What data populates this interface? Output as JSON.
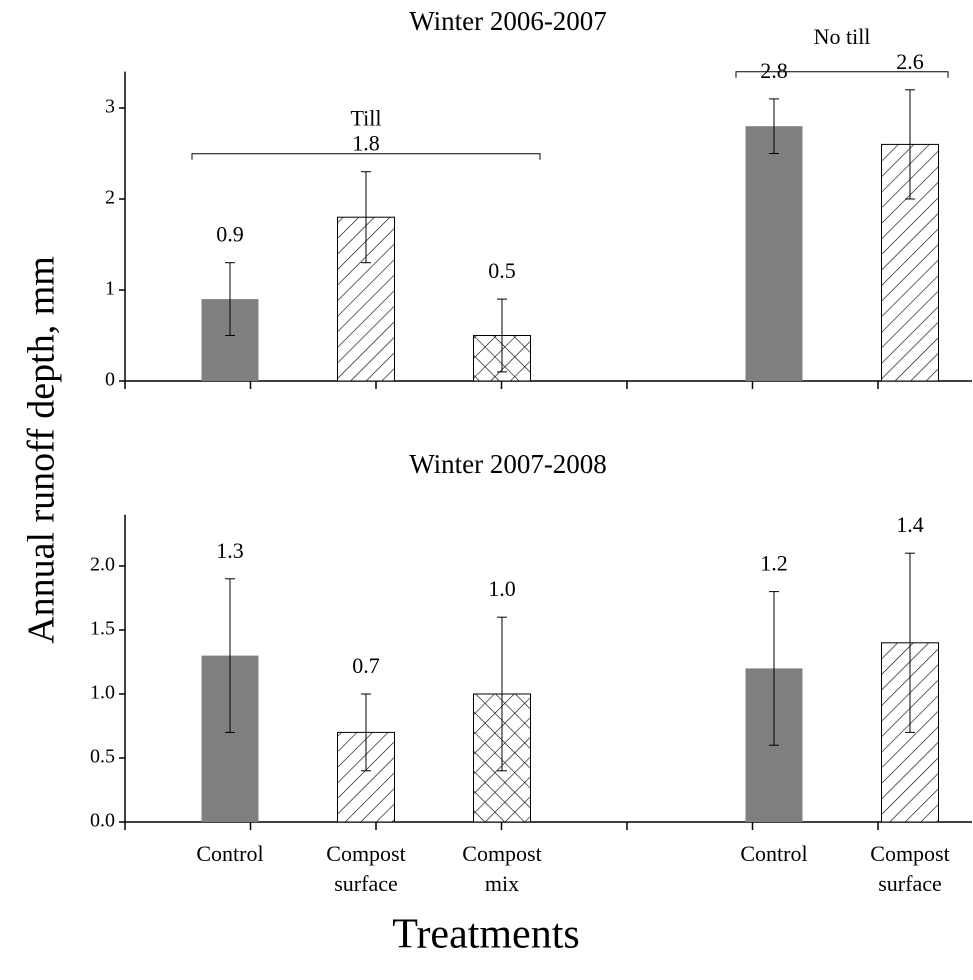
{
  "axis_label_y": "Annual runoff depth, mm",
  "axis_label_x": "Treatments",
  "chart_data": [
    {
      "type": "bar",
      "title": "Winter 2006-2007",
      "categories": [
        [
          "Control"
        ],
        [
          "Compost",
          "surface"
        ],
        [
          "Compost",
          "mix"
        ],
        null,
        [
          "Control"
        ],
        [
          "Compost",
          "surface"
        ]
      ],
      "values": [
        0.9,
        1.8,
        0.5,
        null,
        2.8,
        2.6
      ],
      "errors": [
        0.4,
        0.5,
        0.4,
        null,
        0.3,
        0.6
      ],
      "value_labels": [
        "0.9",
        "1.8",
        "0.5",
        null,
        "2.8",
        "2.6"
      ],
      "fills": [
        "solid",
        "hatch",
        "cross",
        null,
        "solid",
        "hatch"
      ],
      "color": "#7f7f7f",
      "groups": [
        {
          "label": "Till",
          "start": 0,
          "end": 2
        },
        {
          "label": "No till",
          "start": 4,
          "end": 5
        }
      ],
      "ylim": [
        0,
        3.4
      ],
      "yticks": [
        0,
        1,
        2,
        3
      ],
      "show_x_labels": false
    },
    {
      "type": "bar",
      "title": "Winter 2007-2008",
      "categories": [
        [
          "Control"
        ],
        [
          "Compost",
          "surface"
        ],
        [
          "Compost",
          "mix"
        ],
        null,
        [
          "Control"
        ],
        [
          "Compost",
          "surface"
        ]
      ],
      "values": [
        1.3,
        0.7,
        1.0,
        null,
        1.2,
        1.4
      ],
      "errors": [
        0.6,
        0.3,
        0.6,
        null,
        0.6,
        0.7
      ],
      "value_labels": [
        "1.3",
        "0.7",
        "1.0",
        null,
        "1.2",
        "1.4"
      ],
      "fills": [
        "solid",
        "hatch",
        "cross",
        null,
        "solid",
        "hatch"
      ],
      "color": "#7f7f7f",
      "ylim": [
        0,
        2.4
      ],
      "yticks": [
        {
          "value": 0,
          "label": "0.0"
        },
        {
          "value": 0.5,
          "label": "0.5"
        },
        {
          "value": 1,
          "label": "1.0"
        },
        {
          "value": 1.5,
          "label": "1.5"
        },
        {
          "value": 2,
          "label": "2.0"
        }
      ],
      "show_x_labels": true
    }
  ]
}
